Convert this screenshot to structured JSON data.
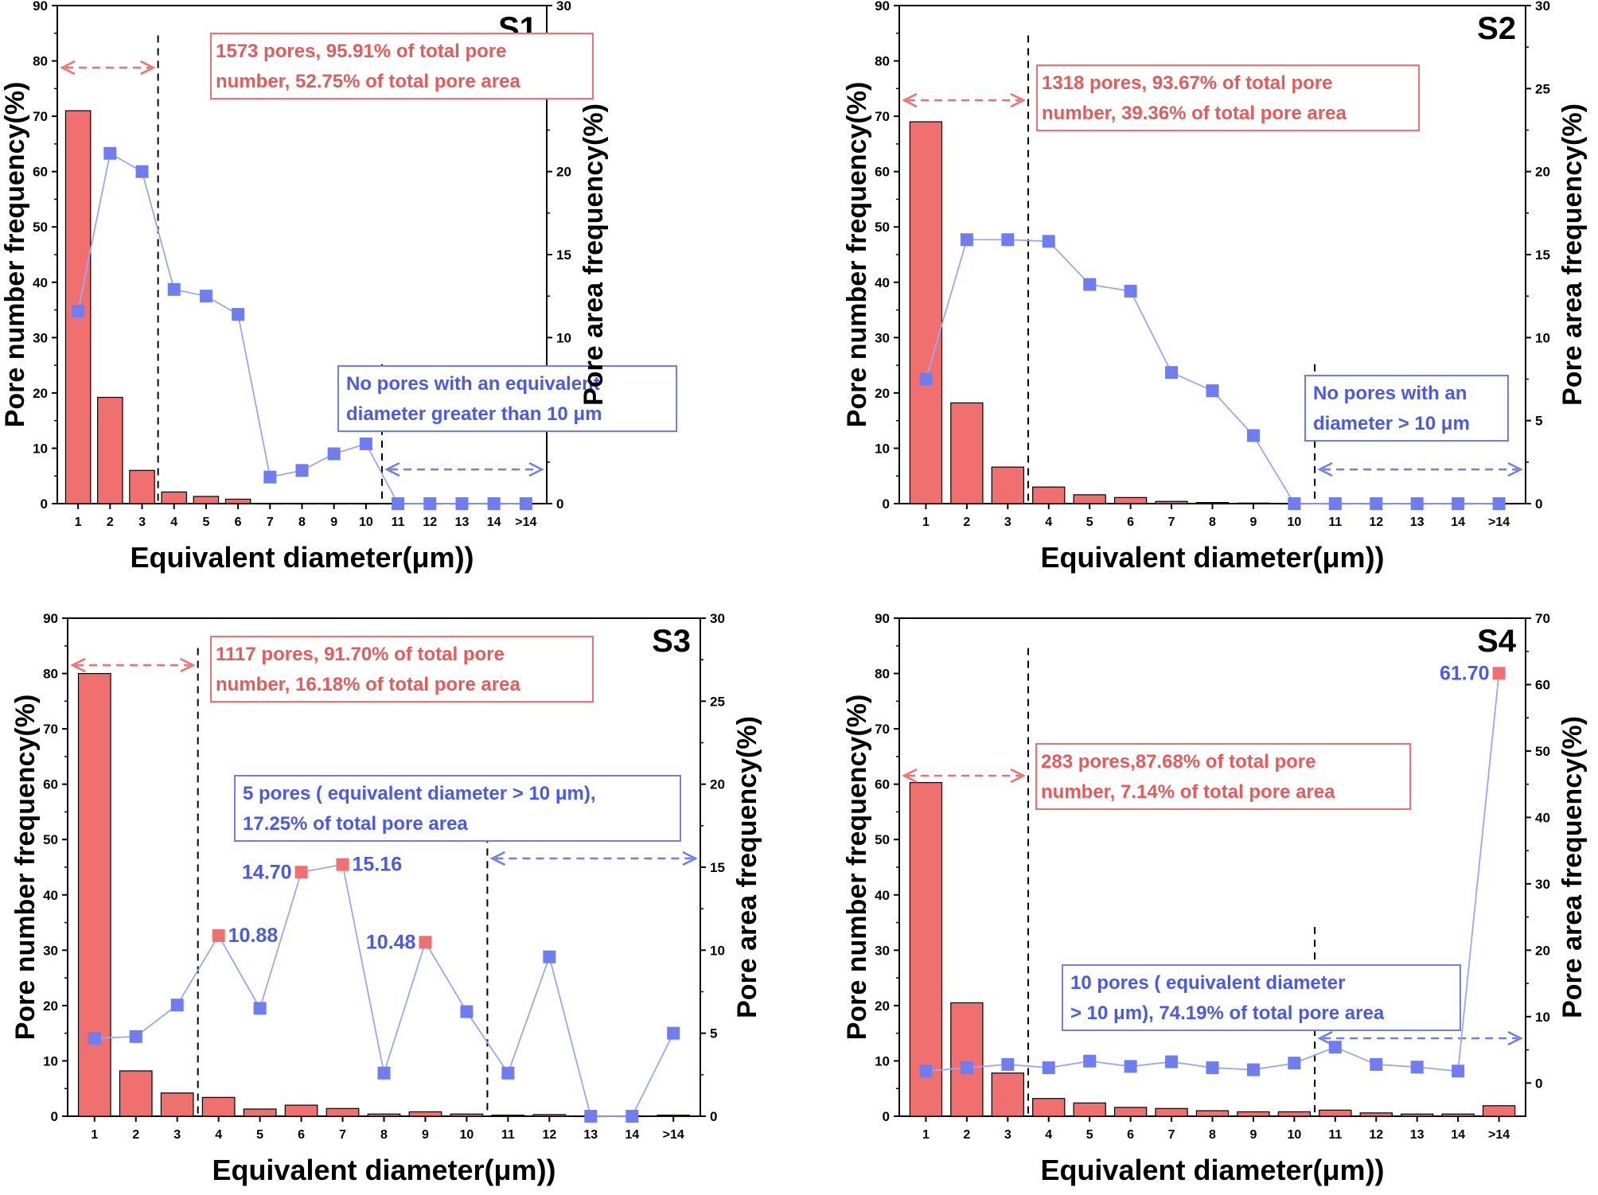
{
  "figure": {
    "description_free": true
  },
  "chart_data": [
    {
      "id": "S1",
      "type": "bar+line",
      "title": "S1",
      "xlabel": "Equivalent diameter(μm))",
      "ylabel_left": "Pore number frequency(%)",
      "ylabel_right": "Pore area frequency(%)",
      "categories": [
        "1",
        "2",
        "3",
        "4",
        "5",
        "6",
        "7",
        "8",
        "9",
        "10",
        "11",
        "12",
        "13",
        "14",
        ">14"
      ],
      "ylim_left": [
        0,
        90
      ],
      "yticks_left": [
        0,
        10,
        20,
        30,
        40,
        50,
        60,
        70,
        80,
        90
      ],
      "ylim_right": [
        0,
        30
      ],
      "yticks_right": [
        0,
        5,
        10,
        15,
        20,
        25,
        30
      ],
      "series": [
        {
          "name": "Pore number frequency",
          "kind": "bar",
          "axis": "left",
          "values": [
            71,
            19.2,
            6,
            2.1,
            1.3,
            0.8,
            0,
            0,
            0,
            0,
            0,
            0,
            0,
            0,
            0
          ]
        },
        {
          "name": "Pore area frequency",
          "kind": "line",
          "axis": "right",
          "values": [
            11.6,
            21.1,
            20.0,
            12.9,
            12.5,
            11.4,
            1.6,
            2.0,
            3.0,
            3.6,
            0,
            0,
            0,
            0,
            0
          ]
        }
      ],
      "highlight_points": [],
      "point_labels": [],
      "threshold_line_at": 3.5,
      "second_line_at": 10.5,
      "red_box": {
        "lines": [
          "1573 pores, 95.91% of total  pore",
          "number, 52.75% of total pore area"
        ]
      },
      "blue_box": {
        "lines": [
          "No pores with an equivalent",
          "diameter greater than 10 μm"
        ]
      }
    },
    {
      "id": "S2",
      "type": "bar+line",
      "title": "S2",
      "xlabel": "Equivalent diameter(μm))",
      "ylabel_left": "Pore number frequency(%)",
      "ylabel_right": "Pore area frequency(%)",
      "categories": [
        "1",
        "2",
        "3",
        "4",
        "5",
        "6",
        "7",
        "8",
        "9",
        "10",
        "11",
        "12",
        "13",
        "14",
        ">14"
      ],
      "ylim_left": [
        0,
        90
      ],
      "yticks_left": [
        0,
        10,
        20,
        30,
        40,
        50,
        60,
        70,
        80,
        90
      ],
      "ylim_right": [
        0,
        30
      ],
      "yticks_right": [
        0,
        5,
        10,
        15,
        20,
        25,
        30
      ],
      "series": [
        {
          "name": "Pore number frequency",
          "kind": "bar",
          "axis": "left",
          "values": [
            69,
            18.2,
            6.6,
            3,
            1.6,
            1.1,
            0.4,
            0.2,
            0.1,
            0,
            0,
            0,
            0,
            0,
            0
          ]
        },
        {
          "name": "Pore area frequency",
          "kind": "line",
          "axis": "right",
          "values": [
            7.5,
            15.9,
            15.9,
            15.8,
            13.2,
            12.8,
            7.9,
            6.8,
            4.1,
            0,
            0,
            0,
            0,
            0,
            0
          ]
        }
      ],
      "highlight_points": [],
      "point_labels": [],
      "threshold_line_at": 3.5,
      "second_line_at": 10.5,
      "red_box": {
        "lines": [
          "1318 pores, 93.67% of total  pore",
          "number, 39.36% of total pore area"
        ]
      },
      "blue_box": {
        "lines": [
          "No pores with an",
          "diameter > 10 μm"
        ]
      }
    },
    {
      "id": "S3",
      "type": "bar+line",
      "title": "S3",
      "xlabel": "Equivalent diameter(μm))",
      "ylabel_left": "Pore number frequency(%)",
      "ylabel_right": "Pore area frequency(%)",
      "categories": [
        "1",
        "2",
        "3",
        "4",
        "5",
        "6",
        "7",
        "8",
        "9",
        "10",
        "11",
        "12",
        "13",
        "14",
        ">14"
      ],
      "ylim_left": [
        0,
        90
      ],
      "yticks_left": [
        0,
        10,
        20,
        30,
        40,
        50,
        60,
        70,
        80,
        90
      ],
      "ylim_right": [
        0,
        30
      ],
      "yticks_right": [
        0,
        5,
        10,
        15,
        20,
        25,
        30
      ],
      "series": [
        {
          "name": "Pore number frequency",
          "kind": "bar",
          "axis": "left",
          "values": [
            80,
            8.2,
            4.2,
            3.4,
            1.3,
            2,
            1.4,
            0.4,
            0.8,
            0.4,
            0.2,
            0.3,
            0,
            0,
            0.2
          ]
        },
        {
          "name": "Pore area frequency",
          "kind": "line",
          "axis": "right",
          "values": [
            4.7,
            4.8,
            6.7,
            10.88,
            6.5,
            14.7,
            15.16,
            2.6,
            10.48,
            6.3,
            2.6,
            9.6,
            0,
            0,
            5
          ]
        }
      ],
      "highlight_points": [
        3,
        5,
        6,
        8
      ],
      "point_labels": [
        {
          "index": 3,
          "text": "10.88",
          "side": "right"
        },
        {
          "index": 5,
          "text": "14.70",
          "side": "left"
        },
        {
          "index": 6,
          "text": "15.16",
          "side": "right"
        },
        {
          "index": 8,
          "text": "10.48",
          "side": "left"
        }
      ],
      "threshold_line_at": 3.5,
      "second_line_at": 10.5,
      "red_box": {
        "lines": [
          "1117 pores, 91.70% of total  pore",
          "number, 16.18% of total pore area"
        ]
      },
      "blue_box": {
        "lines": [
          "5 pores ( equivalent diameter > 10 μm),",
          "17.25% of total pore area"
        ]
      }
    },
    {
      "id": "S4",
      "type": "bar+line",
      "title": "S4",
      "xlabel": "Equivalent diameter(μm))",
      "ylabel_left": "Pore number frequency(%)",
      "ylabel_right": "Pore area frequency(%)",
      "categories": [
        "1",
        "2",
        "3",
        "4",
        "5",
        "6",
        "7",
        "8",
        "9",
        "10",
        "11",
        "12",
        "13",
        "14",
        ">14"
      ],
      "ylim_left": [
        0,
        90
      ],
      "yticks_left": [
        0,
        10,
        20,
        30,
        40,
        50,
        60,
        70,
        80,
        90
      ],
      "ylim_right": [
        -5,
        70
      ],
      "yticks_right": [
        0,
        10,
        20,
        30,
        40,
        50,
        60,
        70
      ],
      "series": [
        {
          "name": "Pore number frequency",
          "kind": "bar",
          "axis": "left",
          "values": [
            60.3,
            20.5,
            7.8,
            3.2,
            2.4,
            1.6,
            1.4,
            1,
            0.8,
            0.8,
            1.1,
            0.6,
            0.4,
            0.4,
            1.9
          ]
        },
        {
          "name": "Pore area frequency",
          "kind": "line",
          "axis": "right",
          "values": [
            1.8,
            2.3,
            2.8,
            2.3,
            3.3,
            2.5,
            3.2,
            2.3,
            2.0,
            3.0,
            5.4,
            2.8,
            2.4,
            1.8,
            61.7
          ]
        }
      ],
      "highlight_points": [
        14
      ],
      "point_labels": [
        {
          "index": 14,
          "text": "61.70",
          "side": "left"
        }
      ],
      "threshold_line_at": 3.5,
      "second_line_at": 10.5,
      "red_box": {
        "lines": [
          "283 pores,87.68% of total  pore",
          "number, 7.14% of total pore area"
        ]
      },
      "blue_box": {
        "lines": [
          "10 pores ( equivalent diameter",
          "> 10 μm), 74.19% of total pore area"
        ]
      }
    }
  ]
}
